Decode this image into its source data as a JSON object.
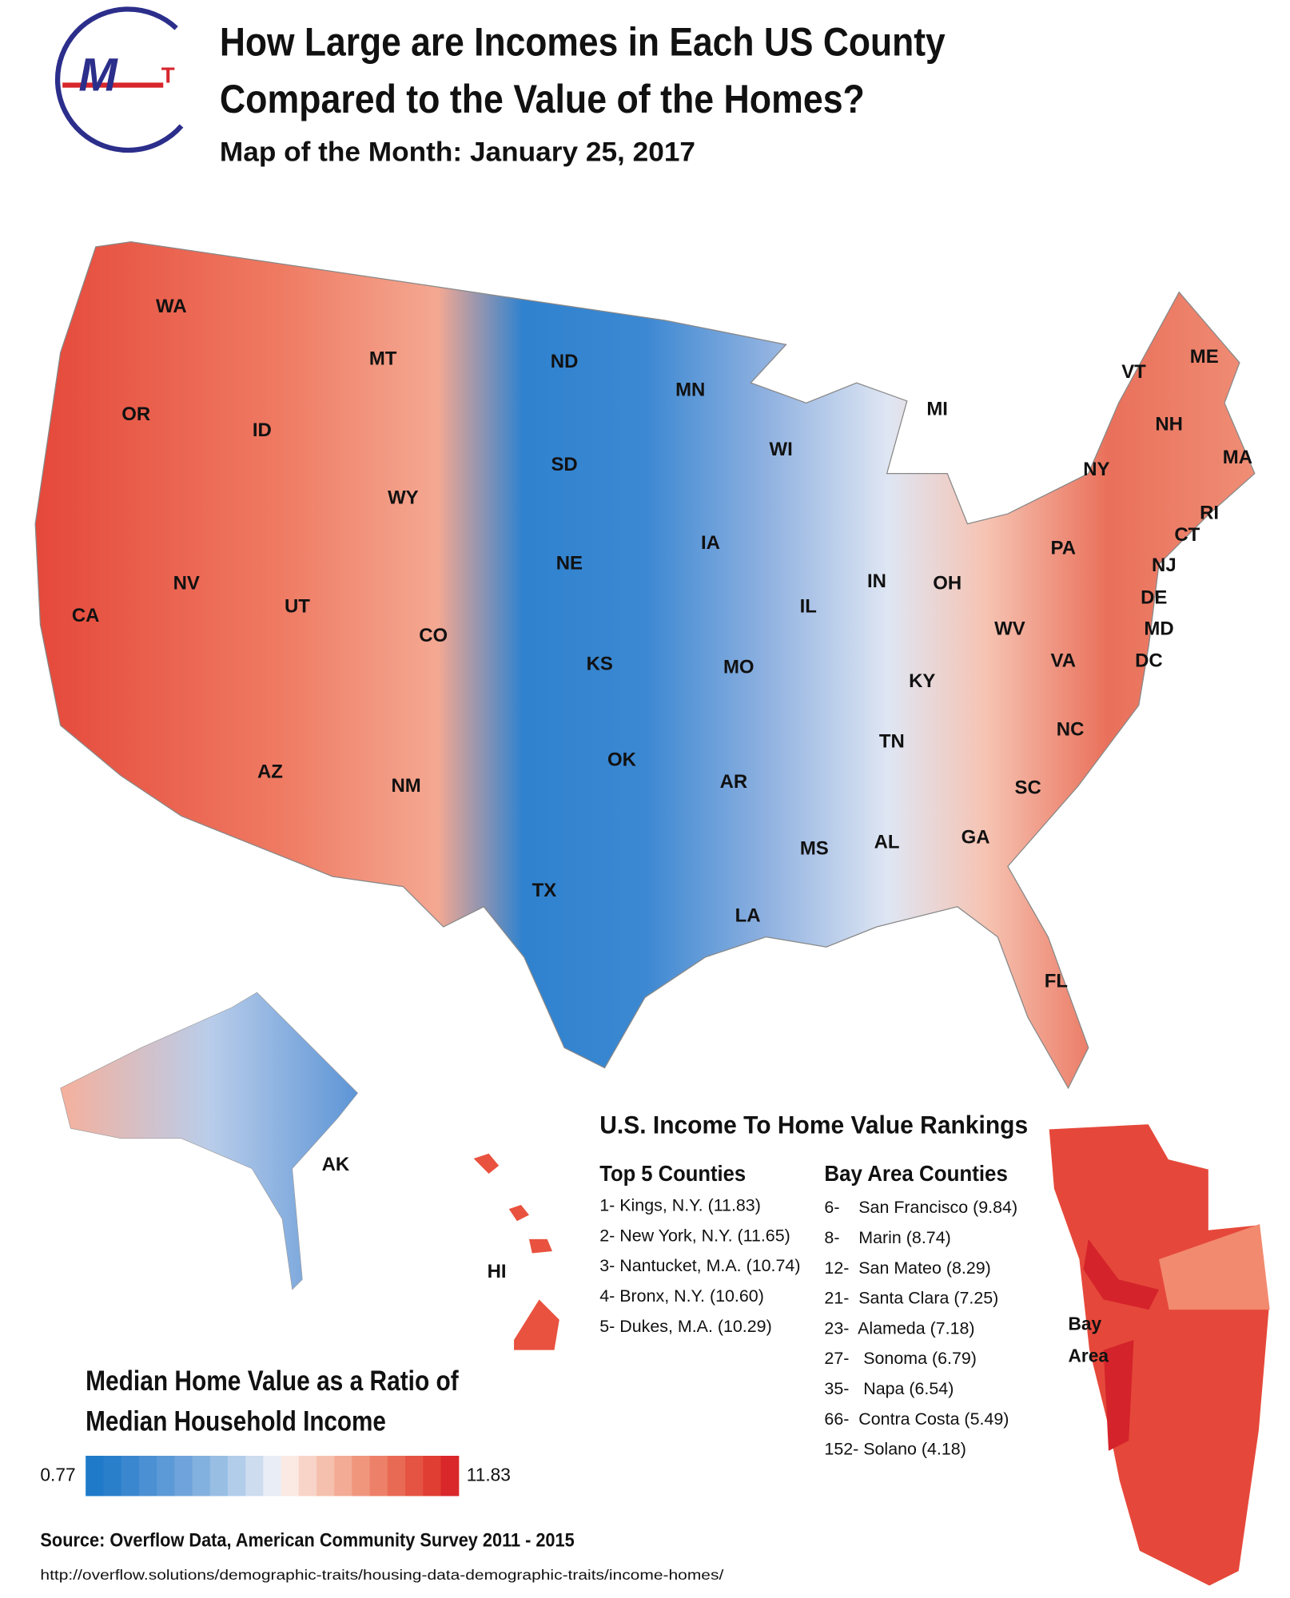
{
  "logo": {
    "letters": [
      "M",
      "T"
    ]
  },
  "header": {
    "title_lines": [
      "How Large are Incomes in Each US County",
      "Compared to the Value of the Homes?"
    ],
    "subtitle": "Map of the Month: January  25, 2017"
  },
  "map": {
    "state_labels": [
      "WA",
      "MT",
      "ND",
      "MN",
      "ME",
      "VT",
      "MI",
      "OR",
      "ID",
      "WI",
      "NH",
      "MA",
      "SD",
      "NY",
      "WY",
      "RI",
      "CT",
      "IA",
      "PA",
      "NJ",
      "NE",
      "NV",
      "IN",
      "OH",
      "UT",
      "DE",
      "IL",
      "CA",
      "CO",
      "MD",
      "WV",
      "KS",
      "MO",
      "DC",
      "VA",
      "KY",
      "NC",
      "TN",
      "OK",
      "AZ",
      "NM",
      "AR",
      "SC",
      "MS",
      "AL",
      "GA",
      "TX",
      "LA",
      "FL",
      "AK",
      "HI"
    ],
    "bay_area_label": [
      "Bay",
      "Area"
    ]
  },
  "rankings": {
    "title": "U.S. Income To Home Value Rankings",
    "top5": {
      "heading": "Top 5 Counties",
      "items": [
        "1- Kings, N.Y. (11.83)",
        "2- New York, N.Y. (11.65)",
        "3- Nantucket, M.A. (10.74)",
        "4- Bronx, N.Y. (10.60)",
        "5- Dukes, M.A. (10.29)"
      ]
    },
    "bay_area": {
      "heading": "Bay Area Counties",
      "items": [
        "6-    San Francisco (9.84)",
        "8-    Marin (8.74)",
        "12-  San Mateo (8.29)",
        "21-  Santa Clara (7.25)",
        "23-  Alameda (7.18)",
        "27-   Sonoma (6.79)",
        "35-   Napa (6.54)",
        "66-  Contra Costa (5.49)",
        "152- Solano (4.18)"
      ]
    }
  },
  "legend": {
    "title_lines": [
      "Median Home Value as a Ratio of",
      "Median Household Income"
    ],
    "min": "0.77",
    "max": "11.83"
  },
  "source": {
    "text": "Source: Overflow Data, American Community Survey 2011 - 2015",
    "url": "http://overflow.solutions/demographic-traits/housing-data-demographic-traits/income-homes/"
  }
}
